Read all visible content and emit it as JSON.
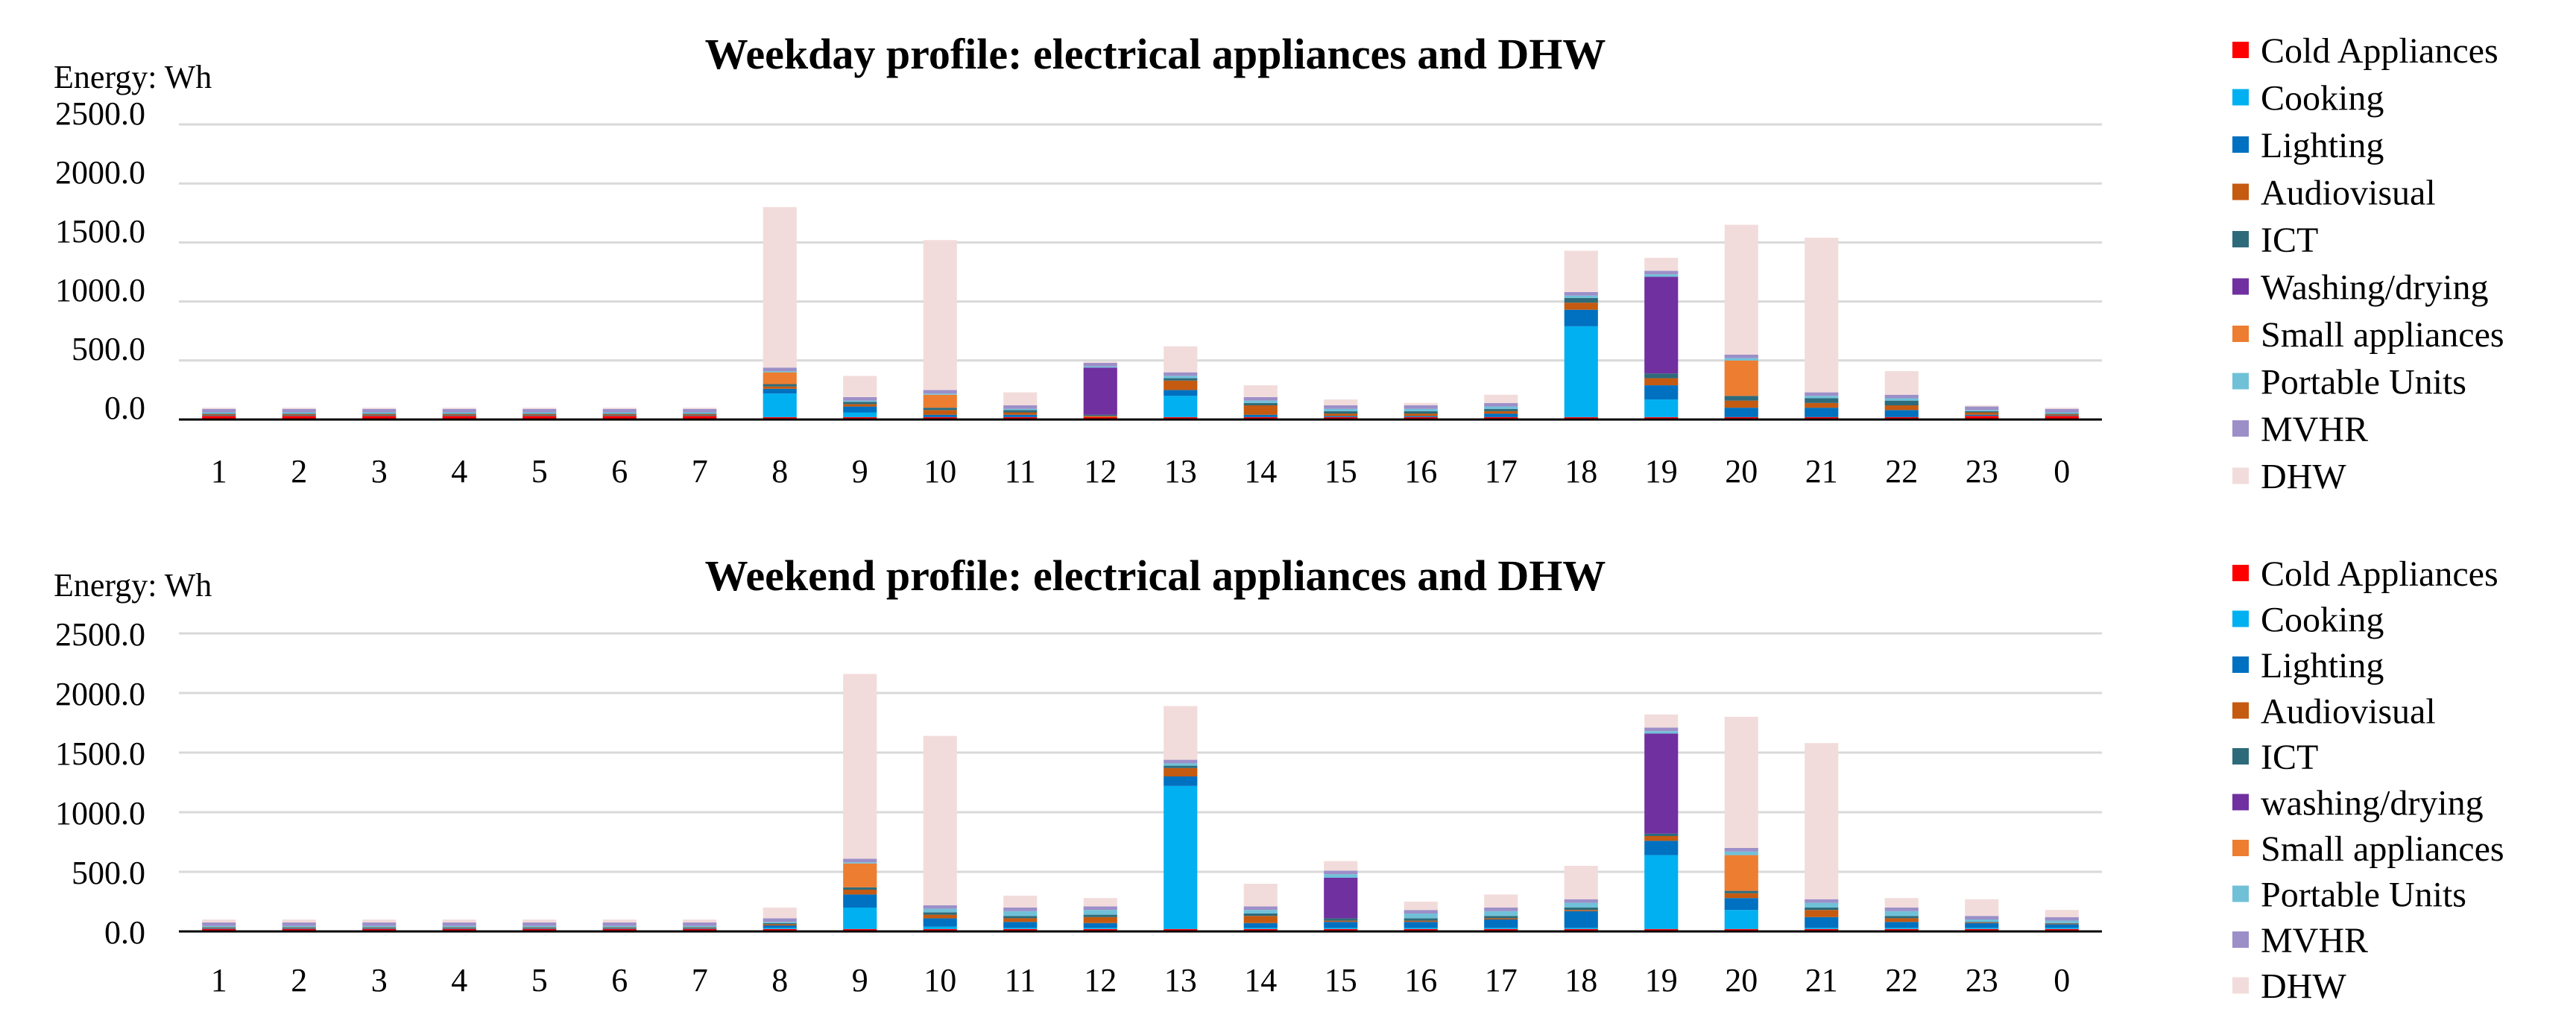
{
  "chart_data": [
    {
      "type": "bar",
      "stacked": true,
      "title": "Weekday profile: electrical appliances and DHW",
      "ylabel": "Energy: Wh",
      "xlabel": "",
      "ylim": [
        0,
        2500
      ],
      "yticks": [
        "0.0",
        "500.0",
        "1000.0",
        "1500.0",
        "2000.0",
        "2500.0"
      ],
      "grid": true,
      "legend_position": "right",
      "categories": [
        "1",
        "2",
        "3",
        "4",
        "5",
        "6",
        "7",
        "8",
        "9",
        "10",
        "11",
        "12",
        "13",
        "14",
        "15",
        "16",
        "17",
        "18",
        "19",
        "20",
        "21",
        "22",
        "23",
        "0"
      ],
      "series": [
        {
          "name": "Cold Appliances",
          "color": "#ff0000",
          "values": [
            30,
            30,
            30,
            30,
            30,
            30,
            30,
            20,
            20,
            20,
            20,
            20,
            20,
            20,
            20,
            20,
            20,
            20,
            20,
            20,
            20,
            20,
            30,
            30
          ]
        },
        {
          "name": "Cooking",
          "color": "#00b0f0",
          "values": [
            0,
            0,
            0,
            0,
            0,
            0,
            0,
            200,
            40,
            0,
            0,
            0,
            180,
            0,
            0,
            0,
            0,
            770,
            150,
            0,
            0,
            0,
            0,
            0
          ]
        },
        {
          "name": "Lighting",
          "color": "#0070c0",
          "values": [
            5,
            5,
            5,
            5,
            5,
            5,
            5,
            40,
            50,
            20,
            20,
            0,
            50,
            20,
            10,
            10,
            30,
            140,
            120,
            80,
            80,
            60,
            10,
            5
          ]
        },
        {
          "name": "Audiovisual",
          "color": "#c55a11",
          "values": [
            10,
            10,
            10,
            10,
            10,
            10,
            10,
            20,
            20,
            40,
            20,
            10,
            80,
            80,
            20,
            20,
            20,
            60,
            60,
            60,
            40,
            40,
            20,
            10
          ]
        },
        {
          "name": "ICT",
          "color": "#2e6b7a",
          "values": [
            5,
            5,
            5,
            5,
            5,
            5,
            5,
            20,
            20,
            20,
            20,
            10,
            20,
            20,
            20,
            20,
            20,
            40,
            40,
            40,
            40,
            40,
            10,
            5
          ]
        },
        {
          "name": "Washing/drying",
          "color": "#7030a0",
          "values": [
            0,
            0,
            0,
            0,
            0,
            0,
            0,
            0,
            0,
            0,
            0,
            400,
            0,
            0,
            0,
            0,
            0,
            0,
            820,
            0,
            0,
            0,
            0,
            0
          ]
        },
        {
          "name": "Small appliances",
          "color": "#ed7d31",
          "values": [
            0,
            0,
            0,
            0,
            0,
            0,
            0,
            100,
            0,
            110,
            0,
            0,
            0,
            0,
            0,
            0,
            0,
            0,
            0,
            300,
            0,
            0,
            0,
            0
          ]
        },
        {
          "name": "Portable Units",
          "color": "#70c1d8",
          "values": [
            10,
            10,
            10,
            10,
            10,
            10,
            10,
            10,
            10,
            10,
            10,
            10,
            20,
            20,
            20,
            20,
            20,
            20,
            20,
            20,
            20,
            20,
            10,
            10
          ]
        },
        {
          "name": "MVHR",
          "color": "#9c8fc8",
          "values": [
            30,
            30,
            30,
            30,
            30,
            30,
            30,
            30,
            30,
            30,
            30,
            30,
            30,
            30,
            30,
            30,
            30,
            30,
            30,
            30,
            30,
            30,
            30,
            30
          ]
        },
        {
          "name": "DHW",
          "color": "#f2dcdb",
          "values": [
            10,
            10,
            10,
            10,
            10,
            10,
            10,
            1360,
            180,
            1270,
            110,
            10,
            220,
            100,
            50,
            20,
            70,
            350,
            110,
            1100,
            1310,
            200,
            10,
            10
          ]
        }
      ]
    },
    {
      "type": "bar",
      "stacked": true,
      "title": "Weekend profile: electrical appliances and DHW",
      "ylabel": "Energy: Wh",
      "xlabel": "",
      "ylim": [
        0,
        2500
      ],
      "yticks": [
        "0.0",
        "500.0",
        "1000.0",
        "1500.0",
        "2000.0",
        "2500.0"
      ],
      "grid": true,
      "legend_position": "right",
      "categories": [
        "1",
        "2",
        "3",
        "4",
        "5",
        "6",
        "7",
        "8",
        "9",
        "10",
        "11",
        "12",
        "13",
        "14",
        "15",
        "16",
        "17",
        "18",
        "19",
        "20",
        "21",
        "22",
        "23",
        "0"
      ],
      "series": [
        {
          "name": "Cold Appliances",
          "color": "#ff0000",
          "values": [
            20,
            20,
            20,
            20,
            20,
            20,
            20,
            20,
            20,
            20,
            20,
            20,
            20,
            20,
            20,
            20,
            20,
            20,
            20,
            20,
            20,
            20,
            20,
            20
          ]
        },
        {
          "name": "Cooking",
          "color": "#00b0f0",
          "values": [
            0,
            0,
            0,
            0,
            0,
            0,
            0,
            10,
            180,
            20,
            10,
            10,
            1200,
            10,
            10,
            10,
            10,
            10,
            620,
            160,
            10,
            10,
            10,
            10
          ]
        },
        {
          "name": "Lighting",
          "color": "#0070c0",
          "values": [
            5,
            5,
            5,
            5,
            5,
            5,
            5,
            20,
            110,
            70,
            50,
            40,
            80,
            40,
            50,
            50,
            70,
            140,
            120,
            100,
            90,
            50,
            40,
            30
          ]
        },
        {
          "name": "Audiovisual",
          "color": "#c55a11",
          "values": [
            5,
            5,
            5,
            5,
            5,
            5,
            5,
            10,
            40,
            30,
            30,
            50,
            70,
            60,
            10,
            10,
            10,
            10,
            40,
            40,
            60,
            30,
            5,
            5
          ]
        },
        {
          "name": "ICT",
          "color": "#2e6b7a",
          "values": [
            5,
            5,
            5,
            5,
            5,
            5,
            5,
            10,
            20,
            20,
            20,
            20,
            20,
            20,
            20,
            20,
            20,
            20,
            20,
            20,
            20,
            20,
            5,
            5
          ]
        },
        {
          "name": "washing/drying",
          "color": "#7030a0",
          "values": [
            0,
            0,
            0,
            0,
            0,
            0,
            0,
            0,
            0,
            0,
            0,
            0,
            0,
            0,
            340,
            0,
            0,
            0,
            840,
            0,
            0,
            0,
            0,
            0
          ]
        },
        {
          "name": "Small appliances",
          "color": "#ed7d31",
          "values": [
            0,
            0,
            0,
            0,
            0,
            0,
            0,
            0,
            200,
            0,
            0,
            0,
            0,
            0,
            0,
            0,
            0,
            0,
            0,
            300,
            0,
            0,
            0,
            0
          ]
        },
        {
          "name": "Portable Units",
          "color": "#70c1d8",
          "values": [
            10,
            10,
            10,
            10,
            10,
            10,
            10,
            10,
            10,
            30,
            40,
            40,
            20,
            30,
            30,
            40,
            40,
            40,
            20,
            30,
            40,
            40,
            20,
            20
          ]
        },
        {
          "name": "MVHR",
          "color": "#9c8fc8",
          "values": [
            30,
            30,
            30,
            30,
            30,
            30,
            30,
            30,
            30,
            30,
            30,
            30,
            30,
            30,
            30,
            30,
            30,
            30,
            30,
            30,
            30,
            30,
            30,
            30
          ]
        },
        {
          "name": "DHW",
          "color": "#f2dcdb",
          "values": [
            25,
            25,
            25,
            25,
            25,
            25,
            25,
            90,
            1550,
            1420,
            100,
            70,
            450,
            190,
            80,
            70,
            110,
            280,
            110,
            1100,
            1310,
            80,
            140,
            60
          ]
        }
      ]
    }
  ]
}
